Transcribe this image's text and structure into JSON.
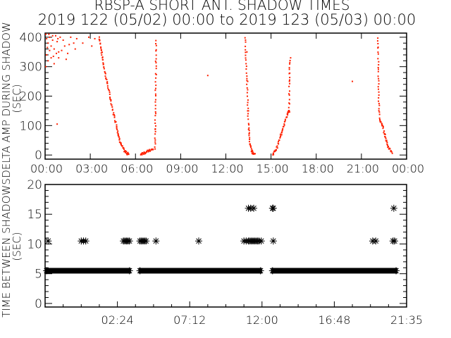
{
  "title": {
    "line1": "RBSP-A SHORT ANT. SHADOW TIMES",
    "line2": "2019 122 (05/02) 00:00 to 2019 123 (05/03) 00:00"
  },
  "colors": {
    "points_top": "#ff2000",
    "points_bottom": "#000000",
    "axes": "#000000",
    "background": "#ffffff"
  },
  "chart_data": [
    {
      "type": "scatter",
      "ylabel": "DELTA AMP DURING SHADOW",
      "ylabel2": "(SEC)",
      "xlim_hours": [
        0,
        24
      ],
      "ylim": [
        -14,
        414
      ],
      "yticks": [
        0,
        100,
        200,
        300,
        400
      ],
      "xtick_labels": [
        "00:00",
        "03:00",
        "06:00",
        "09:00",
        "12:00",
        "15:00",
        "18:00",
        "21:00",
        "00:00"
      ],
      "grid": false,
      "marker": "dot",
      "curves": [
        [
          [
            3.6,
            400
          ],
          [
            3.75,
            350
          ],
          [
            3.9,
            300
          ],
          [
            4.1,
            250
          ],
          [
            4.3,
            200
          ],
          [
            4.5,
            150
          ],
          [
            4.75,
            100
          ],
          [
            4.9,
            60
          ],
          [
            5.05,
            35
          ],
          [
            5.25,
            15
          ],
          [
            5.45,
            5
          ],
          [
            5.55,
            5
          ]
        ],
        [
          [
            6.35,
            3
          ],
          [
            6.6,
            8
          ],
          [
            6.9,
            14
          ],
          [
            7.2,
            20
          ]
        ],
        [
          [
            7.3,
            20
          ],
          [
            7.32,
            100
          ],
          [
            7.34,
            200
          ],
          [
            7.36,
            300
          ],
          [
            7.38,
            400
          ]
        ],
        [
          [
            13.3,
            400
          ],
          [
            13.35,
            300
          ],
          [
            13.45,
            200
          ],
          [
            13.5,
            100
          ],
          [
            13.6,
            40
          ],
          [
            13.75,
            10
          ],
          [
            13.95,
            2
          ]
        ],
        [
          [
            15.1,
            2
          ],
          [
            15.35,
            20
          ],
          [
            15.6,
            60
          ],
          [
            15.85,
            100
          ],
          [
            16.1,
            140
          ],
          [
            16.2,
            150
          ]
        ],
        [
          [
            16.2,
            150
          ],
          [
            16.22,
            250
          ],
          [
            16.25,
            330
          ]
        ],
        [
          [
            22.1,
            400
          ],
          [
            22.12,
            300
          ],
          [
            22.15,
            200
          ],
          [
            22.2,
            120
          ],
          [
            22.4,
            100
          ],
          [
            22.6,
            60
          ],
          [
            22.8,
            25
          ],
          [
            23.05,
            5
          ]
        ]
      ],
      "points": [
        [
          0.05,
          410
        ],
        [
          0.1,
          395
        ],
        [
          0.2,
          380
        ],
        [
          0.3,
          400
        ],
        [
          0.4,
          370
        ],
        [
          0.5,
          390
        ],
        [
          0.6,
          360
        ],
        [
          0.7,
          405
        ],
        [
          0.8,
          385
        ],
        [
          0.9,
          350
        ],
        [
          0.1,
          340
        ],
        [
          0.2,
          320
        ],
        [
          0.05,
          300
        ],
        [
          0.4,
          330
        ],
        [
          0.6,
          310
        ],
        [
          0.9,
          330
        ],
        [
          1.0,
          400
        ],
        [
          1.2,
          390
        ],
        [
          1.3,
          370
        ],
        [
          1.5,
          345
        ],
        [
          1.7,
          400
        ],
        [
          1.9,
          380
        ],
        [
          2.1,
          395
        ],
        [
          2.5,
          380
        ],
        [
          2.9,
          400
        ],
        [
          3.3,
          395
        ],
        [
          3.1,
          370
        ],
        [
          0.3,
          355
        ],
        [
          0.15,
          365
        ],
        [
          0.75,
          345
        ],
        [
          1.1,
          355
        ],
        [
          1.4,
          325
        ],
        [
          0.5,
          405
        ],
        [
          0.25,
          410
        ],
        [
          0.85,
          395
        ],
        [
          2.0,
          360
        ],
        [
          1.6,
          375
        ],
        [
          0.55,
          335
        ],
        [
          0.8,
          105
        ],
        [
          10.8,
          270
        ],
        [
          20.4,
          250
        ],
        [
          13.4,
          350
        ],
        [
          13.45,
          250
        ],
        [
          13.5,
          150
        ],
        [
          16.3,
          330
        ]
      ]
    },
    {
      "type": "scatter",
      "ylabel": "TIME BETWEEN SHADOWS",
      "ylabel2": "(SEC)",
      "xlim_hours": [
        0,
        24
      ],
      "ylim": [
        -0.6,
        20
      ],
      "yticks": [
        0,
        5,
        10,
        15,
        20
      ],
      "xtick_labels": [
        "02:24",
        "07:12",
        "12:00",
        "16:48",
        "21:35"
      ],
      "grid": false,
      "marker": "asterisk",
      "dense_bands": [
        {
          "value": 5.5,
          "hours": [
            0,
            5.7
          ]
        },
        {
          "value": 5.5,
          "hours": [
            6.2,
            14.4
          ]
        },
        {
          "value": 5.5,
          "hours": [
            15.0,
            23.4
          ]
        }
      ],
      "points": [
        [
          0.2,
          10.5
        ],
        [
          2.4,
          10.5
        ],
        [
          2.55,
          10.5
        ],
        [
          2.7,
          10.5
        ],
        [
          5.2,
          10.5
        ],
        [
          5.3,
          10.5
        ],
        [
          5.4,
          10.5
        ],
        [
          5.5,
          10.5
        ],
        [
          5.6,
          10.5
        ],
        [
          6.3,
          10.5
        ],
        [
          6.4,
          10.5
        ],
        [
          6.5,
          10.5
        ],
        [
          6.6,
          10.5
        ],
        [
          6.7,
          10.5
        ],
        [
          7.36,
          10.5
        ],
        [
          10.2,
          10.5
        ],
        [
          13.2,
          10.5
        ],
        [
          13.35,
          10.5
        ],
        [
          13.5,
          10.5
        ],
        [
          13.6,
          10.5
        ],
        [
          13.7,
          10.5
        ],
        [
          13.8,
          10.5
        ],
        [
          13.9,
          10.5
        ],
        [
          14.0,
          10.5
        ],
        [
          14.1,
          10.5
        ],
        [
          14.2,
          10.5
        ],
        [
          14.35,
          10.5
        ],
        [
          15.15,
          10.5
        ],
        [
          21.75,
          10.5
        ],
        [
          21.95,
          10.5
        ],
        [
          23.1,
          10.5
        ],
        [
          23.2,
          10.5
        ],
        [
          13.5,
          16
        ],
        [
          13.65,
          16
        ],
        [
          13.85,
          16
        ],
        [
          15.1,
          16
        ],
        [
          15.15,
          16
        ],
        [
          23.15,
          16
        ]
      ]
    }
  ]
}
